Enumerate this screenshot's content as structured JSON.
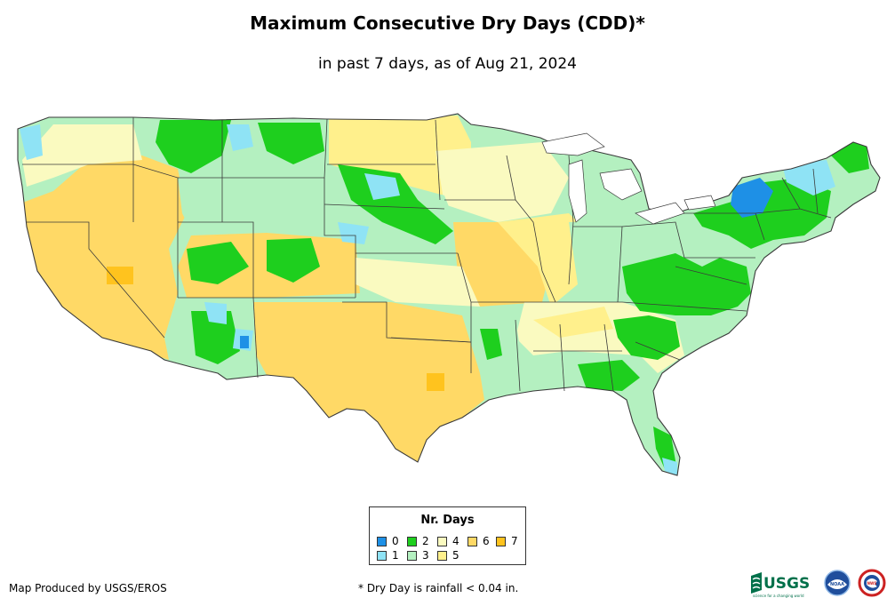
{
  "header": {
    "title": "Maximum Consecutive Dry Days (CDD)*",
    "subtitle": "in past 7 days, as of Aug 21, 2024"
  },
  "legend": {
    "title": "Nr. Days",
    "items": [
      {
        "label": "0",
        "color": "#1e90e6"
      },
      {
        "label": "1",
        "color": "#8fe3f5"
      },
      {
        "label": "2",
        "color": "#1ecf1e"
      },
      {
        "label": "3",
        "color": "#b4f0c0"
      },
      {
        "label": "4",
        "color": "#fafac0"
      },
      {
        "label": "5",
        "color": "#fff08c"
      },
      {
        "label": "6",
        "color": "#ffd966"
      },
      {
        "label": "7",
        "color": "#ffc31e"
      }
    ]
  },
  "footer": {
    "credit": "Map Produced by USGS/EROS",
    "footnote": "* Dry Day is rainfall < 0.04 in.",
    "logo_usgs": "USGS",
    "logo_usgs_tagline": "science for a changing world",
    "logo_noaa": "NOAA",
    "logo_nws": "NWS"
  },
  "colors": {
    "border": "#3a3a3a",
    "noaa_blue": "#1f4e9c",
    "usgs_green": "#00704a"
  }
}
